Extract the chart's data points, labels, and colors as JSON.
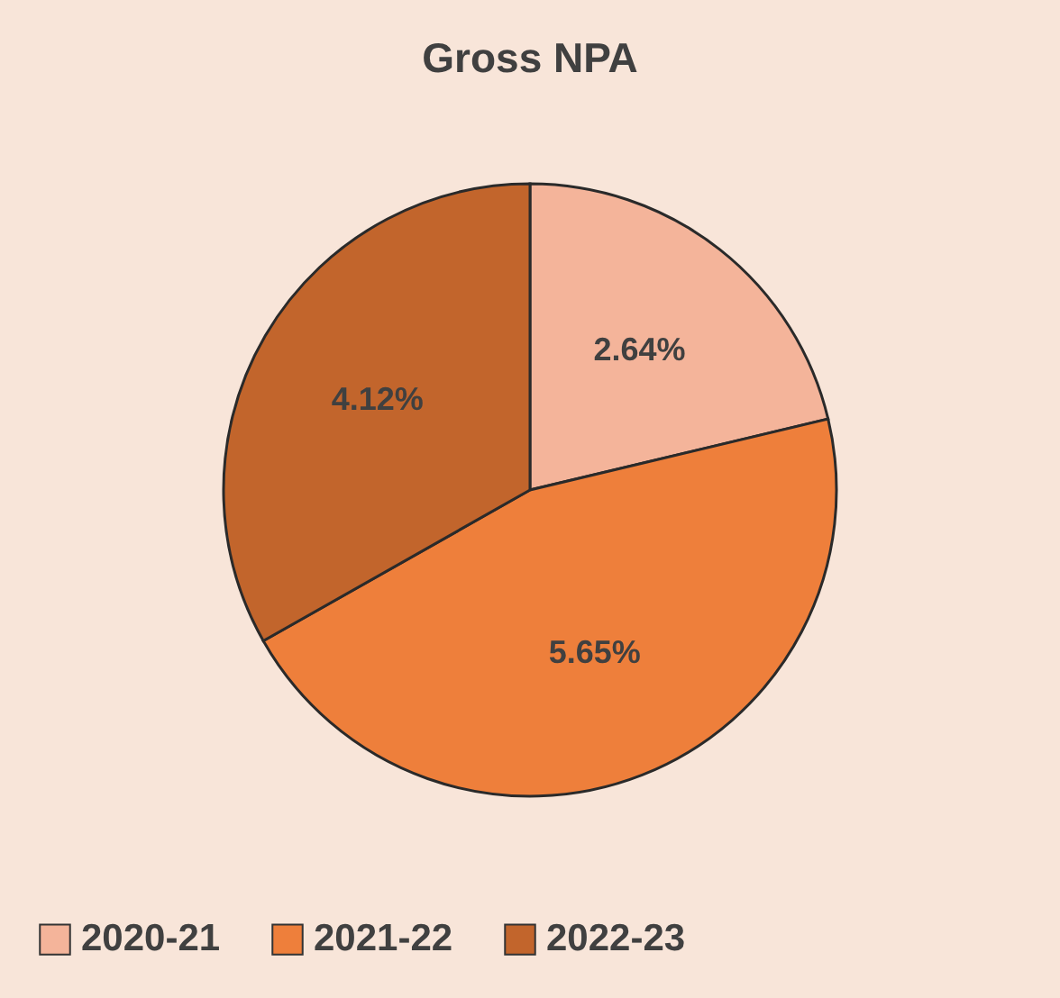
{
  "chart_data": {
    "type": "pie",
    "title": "Gross NPA",
    "categories": [
      "2020-21",
      "2021-22",
      "2022-23"
    ],
    "values": [
      2.64,
      5.65,
      4.12
    ],
    "colors": [
      "#f4b49a",
      "#ee7f3b",
      "#c2652c"
    ],
    "value_labels": [
      "2.64%",
      "5.65%",
      "4.12%"
    ],
    "legend": "bottom"
  }
}
